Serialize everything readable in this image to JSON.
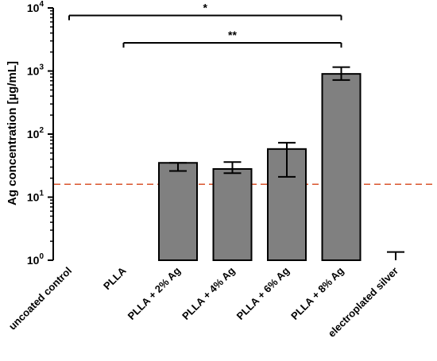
{
  "chart_data": {
    "type": "bar",
    "scale": "log10",
    "ylabel": "Ag concentration [µg/mL]",
    "ylim": [
      1,
      10000
    ],
    "y_ticks": [
      {
        "value": 1,
        "base": "10",
        "exp": "0"
      },
      {
        "value": 10,
        "base": "10",
        "exp": "1"
      },
      {
        "value": 100,
        "base": "10",
        "exp": "2"
      },
      {
        "value": 1000,
        "base": "10",
        "exp": "3"
      },
      {
        "value": 10000,
        "base": "10",
        "exp": "4"
      }
    ],
    "categories": [
      "uncoated control",
      "PLLA",
      "PLLA + 2% Ag",
      "PLLA + 4% Ag",
      "PLLA + 6% Ag",
      "PLLA + 8% Ag",
      "electroplated silver"
    ],
    "values": [
      null,
      null,
      35,
      28,
      58,
      900,
      null
    ],
    "error_low": [
      null,
      null,
      26,
      24,
      21,
      720,
      null
    ],
    "error_high": [
      null,
      null,
      35,
      36,
      73,
      1150,
      1.35
    ],
    "threshold": {
      "value": 16,
      "color": "#d9542c",
      "style": "dashed"
    },
    "significance": [
      {
        "from": 0,
        "to": 5,
        "y": 7600,
        "label": "*"
      },
      {
        "from": 1,
        "to": 5,
        "y": 2800,
        "label": "**"
      }
    ],
    "bar_color": "#808080",
    "grid": false,
    "legend": "none"
  }
}
